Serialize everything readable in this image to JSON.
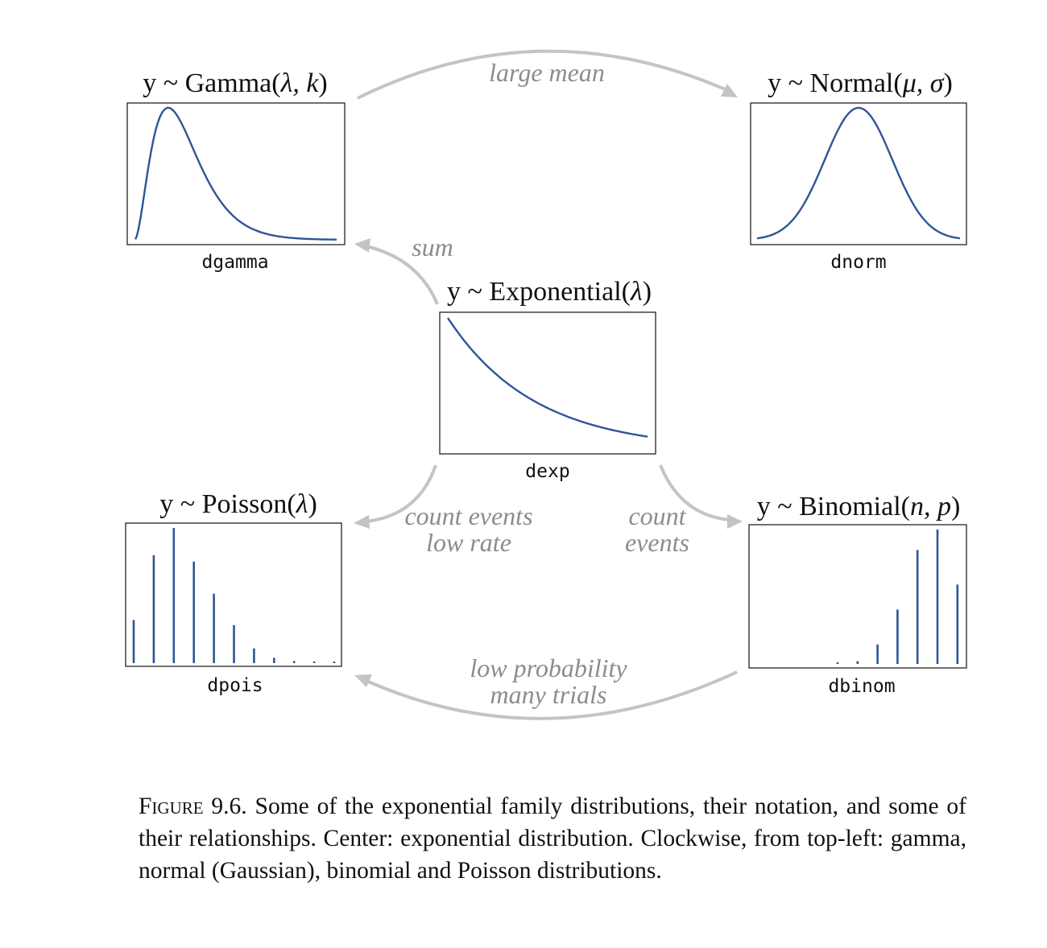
{
  "nodes": {
    "gamma": {
      "title_pre": "y ~ Gamma(",
      "title_params": "λ, k",
      "title_post": ")",
      "r_name": "dgamma",
      "chart_data": {
        "type": "line",
        "curve": "gamma",
        "shape": 3,
        "x": [
          0.05,
          12
        ]
      }
    },
    "normal": {
      "title_pre": "y ~ Normal(",
      "title_params": "μ, σ",
      "title_post": ")",
      "r_name": "dnorm",
      "chart_data": {
        "type": "line",
        "curve": "normal",
        "mean": 0,
        "sd": 1,
        "x": [
          -3,
          3
        ]
      }
    },
    "exponential": {
      "title_pre": "y ~ Exponential(",
      "title_params": "λ",
      "title_post": ")",
      "r_name": "dexp",
      "chart_data": {
        "type": "line",
        "curve": "exponential",
        "rate": 1,
        "x": [
          0,
          2.3
        ]
      }
    },
    "poisson": {
      "title_pre": "y ~ Poisson(",
      "title_params": "λ",
      "title_post": ")",
      "r_name": "dpois",
      "chart_data": {
        "type": "bar",
        "x": [
          0,
          1,
          2,
          3,
          4,
          5,
          6,
          7,
          8,
          9,
          10
        ],
        "values": [
          0.082,
          0.205,
          0.257,
          0.193,
          0.132,
          0.072,
          0.028,
          0.01,
          0.004,
          0.002,
          0.002
        ]
      }
    },
    "binomial": {
      "title_pre": "y ~ Binomial(",
      "title_params": "n, p",
      "title_post": ")",
      "r_name": "dbinom",
      "chart_data": {
        "type": "bar",
        "x": [
          0,
          1,
          2,
          3,
          4,
          5,
          6
        ],
        "values": [
          0.002,
          0.005,
          0.035,
          0.098,
          0.205,
          0.242,
          0.143
        ]
      }
    }
  },
  "relationships": {
    "large_mean": "large mean",
    "sum": "sum",
    "count_low_rate_1": "count events",
    "count_low_rate_2": "low rate",
    "count_1": "count",
    "count_2": "events",
    "low_prob_1": "low probability",
    "low_prob_2": "many trials"
  },
  "caption": {
    "figure_label": "Figure 9.6.",
    "text": "Some of the exponential family distributions, their notation, and some of their relationships. Center: exponential distribution. Clockwise, from top-left: gamma, normal (Gaussian), binomial and Poisson distributions."
  },
  "colors": {
    "curve": "#2f5597",
    "arrow": "#c4c4c4",
    "relation_text": "#8c8c8c"
  }
}
